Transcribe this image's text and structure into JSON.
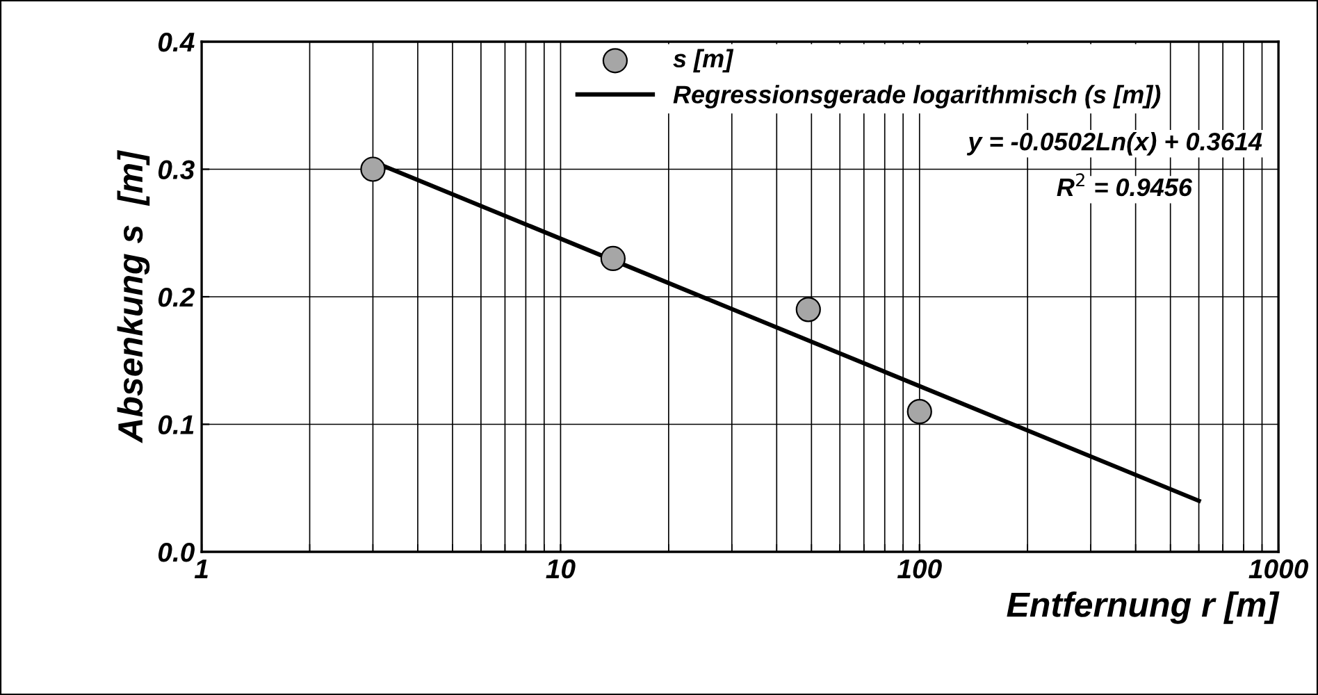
{
  "chart_data": {
    "type": "scatter",
    "xlabel": "Entfernung r [m]",
    "ylabel": "Absenkung s  [m]",
    "log": "x",
    "xlim": [
      1,
      1000
    ],
    "ylim": [
      0,
      0.4
    ],
    "xticks": [
      1,
      10,
      100,
      1000
    ],
    "yticks": [
      {
        "value": 0,
        "label": "0.0"
      },
      0.1,
      0.2,
      0.3,
      0.4
    ],
    "grid": true,
    "legend": "top",
    "series": [
      {
        "name": "s [m]",
        "marker": "circle",
        "color": "#a6a6a6",
        "x": [
          3,
          14,
          49,
          100
        ],
        "values": [
          0.3,
          0.23,
          0.19,
          0.11
        ]
      },
      {
        "name": "Regressionsgerade logarithmisch (s [m])",
        "type": "line",
        "color": "#000000",
        "line_style": "solid",
        "x": [
          3,
          600
        ],
        "values": [
          0.306,
          0.04
        ]
      }
    ],
    "annotations": [
      "y = -0.0502Ln(x) + 0.3614",
      "R$^{2}$ = 0.9456"
    ]
  }
}
